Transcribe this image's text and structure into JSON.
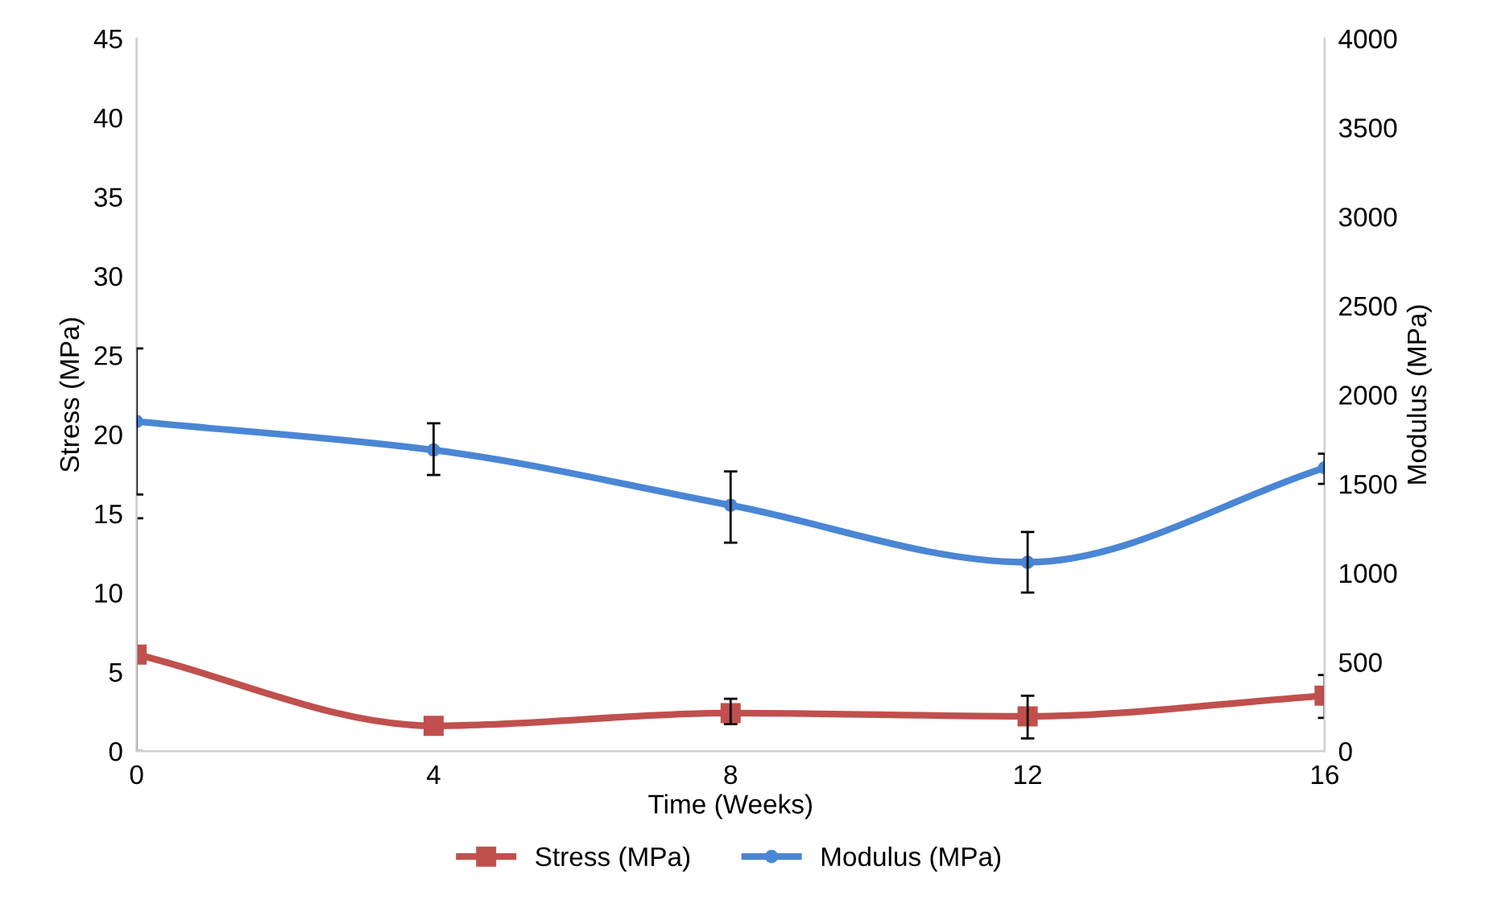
{
  "chart_data": {
    "type": "line",
    "xlabel": "Time (Weeks)",
    "ylabel": "Stress (MPa)",
    "y2label": "Modulus (MPa)",
    "x": [
      0,
      4,
      8,
      12,
      16
    ],
    "xlim": [
      0,
      16
    ],
    "xticks": [
      0,
      4,
      8,
      12,
      16
    ],
    "ylim": [
      0,
      45
    ],
    "yticks": [
      0,
      5,
      10,
      15,
      20,
      25,
      30,
      35,
      40,
      45
    ],
    "y2lim": [
      0,
      4000
    ],
    "y2ticks": [
      0,
      500,
      1000,
      1500,
      2000,
      2500,
      3000,
      3500,
      4000
    ],
    "grid": false,
    "legend": "bottom",
    "series": [
      {
        "name": "Stress (MPa)",
        "color": "#c0504d",
        "marker": "square",
        "values": [
          6.1,
          1.6,
          2.4,
          2.2,
          3.5
        ],
        "errors": [
          [
            0,
            14.7
          ],
          null,
          [
            1.7,
            3.3
          ],
          [
            0.8,
            3.5
          ],
          [
            2.1,
            4.8
          ]
        ]
      },
      {
        "name": "Modulus (MPa)",
        "color": "#4a86d4",
        "marker": "circle",
        "axis": "y2",
        "values": [
          1850,
          1690,
          1380,
          1060,
          1590
        ],
        "errors": [
          [
            1440,
            2260
          ],
          [
            1550,
            1840
          ],
          [
            1170,
            1570
          ],
          [
            890,
            1230
          ],
          [
            1500,
            1670
          ]
        ]
      }
    ]
  }
}
